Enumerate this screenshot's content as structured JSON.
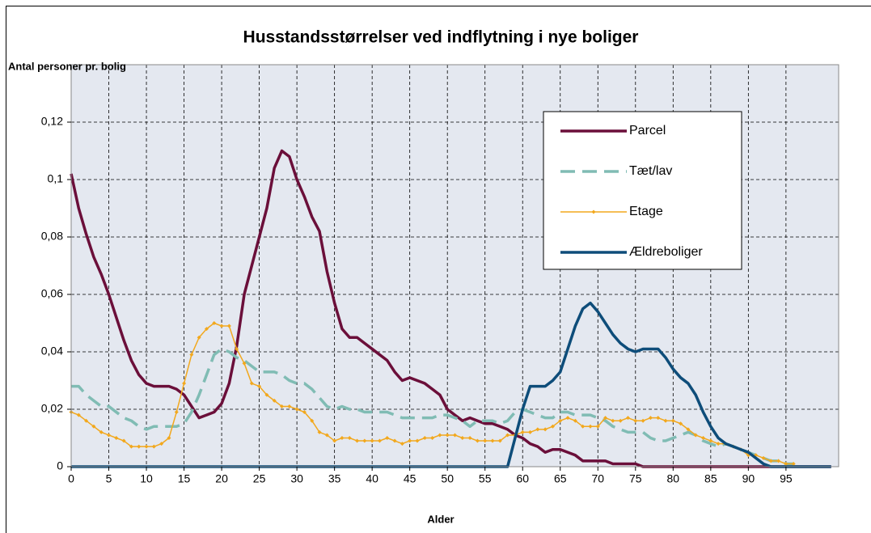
{
  "chart_data": {
    "type": "line",
    "title": "Husstandsstørrelser ved indflytning i nye boliger",
    "y_label": "Antal personer pr. bolig",
    "x_label": "Alder",
    "x": [
      0,
      1,
      2,
      3,
      4,
      5,
      6,
      7,
      8,
      9,
      10,
      11,
      12,
      13,
      14,
      15,
      16,
      17,
      18,
      19,
      20,
      21,
      22,
      23,
      24,
      25,
      26,
      27,
      28,
      29,
      30,
      31,
      32,
      33,
      34,
      35,
      36,
      37,
      38,
      39,
      40,
      41,
      42,
      43,
      44,
      45,
      46,
      47,
      48,
      49,
      50,
      51,
      52,
      53,
      54,
      55,
      56,
      57,
      58,
      59,
      60,
      61,
      62,
      63,
      64,
      65,
      66,
      67,
      68,
      69,
      70,
      71,
      72,
      73,
      74,
      75,
      76,
      77,
      78,
      79,
      80,
      81,
      82,
      83,
      84,
      85,
      86,
      87,
      88,
      89,
      90,
      91,
      92,
      93,
      94,
      95,
      96,
      97,
      98,
      99,
      100,
      101
    ],
    "xlim": [
      0,
      102
    ],
    "xticks": [
      0,
      5,
      10,
      15,
      20,
      25,
      30,
      35,
      40,
      45,
      50,
      55,
      60,
      65,
      70,
      75,
      80,
      85,
      90,
      95
    ],
    "ylim": [
      0,
      0.14
    ],
    "yticks": [
      0,
      {
        "value": 0.02,
        "label": "0,02"
      },
      {
        "value": 0.04,
        "label": "0,04"
      },
      {
        "value": 0.06,
        "label": "0,06"
      },
      {
        "value": 0.08,
        "label": "0,08"
      },
      {
        "value": 0.1,
        "label": "0,1"
      },
      {
        "value": 0.12,
        "label": "0,12"
      }
    ],
    "grid": true,
    "legend": "upper right",
    "series": [
      {
        "name": "Parcel",
        "color": "#6b0f3a",
        "values": [
          0.102,
          0.09,
          0.081,
          0.073,
          0.067,
          0.06,
          0.052,
          0.044,
          0.037,
          0.032,
          0.029,
          0.028,
          0.028,
          0.028,
          0.027,
          0.025,
          0.021,
          0.017,
          0.018,
          0.019,
          0.022,
          0.029,
          0.042,
          0.06,
          0.07,
          0.08,
          0.09,
          0.104,
          0.11,
          0.108,
          0.1,
          0.094,
          0.087,
          0.082,
          0.068,
          0.057,
          0.048,
          0.045,
          0.045,
          0.043,
          0.041,
          0.039,
          0.037,
          0.033,
          0.03,
          0.031,
          0.03,
          0.029,
          0.027,
          0.025,
          0.02,
          0.018,
          0.016,
          0.017,
          0.016,
          0.015,
          0.015,
          0.014,
          0.013,
          0.011,
          0.01,
          0.008,
          0.007,
          0.005,
          0.006,
          0.006,
          0.005,
          0.004,
          0.002,
          0.002,
          0.002,
          0.002,
          0.001,
          0.001,
          0.001,
          0.001,
          0,
          0,
          0,
          0,
          0,
          0,
          0,
          0,
          0,
          0,
          0,
          0,
          0,
          0,
          0,
          0,
          0,
          0,
          0,
          0,
          0,
          0,
          0,
          0,
          0,
          0
        ]
      },
      {
        "name": "Tæt/lav",
        "color": "#80bcb4",
        "style": "dashed",
        "values": [
          0.028,
          0.028,
          0.025,
          0.023,
          0.021,
          0.021,
          0.019,
          0.017,
          0.016,
          0.014,
          0.013,
          0.014,
          0.014,
          0.014,
          0.014,
          0.015,
          0.019,
          0.025,
          0.032,
          0.039,
          0.041,
          0.04,
          0.038,
          0.037,
          0.035,
          0.033,
          0.033,
          0.033,
          0.032,
          0.03,
          0.029,
          0.029,
          0.027,
          0.024,
          0.021,
          0.02,
          0.021,
          0.02,
          0.02,
          0.019,
          0.019,
          0.019,
          0.019,
          0.018,
          0.017,
          0.017,
          0.017,
          0.017,
          0.017,
          0.018,
          0.018,
          0.017,
          0.016,
          0.014,
          0.016,
          0.016,
          0.016,
          0.015,
          0.016,
          0.019,
          0.02,
          0.019,
          0.018,
          0.017,
          0.017,
          0.019,
          0.019,
          0.018,
          0.018,
          0.018,
          0.017,
          0.016,
          0.014,
          0.013,
          0.012,
          0.012,
          0.012,
          0.01,
          0.009,
          0.009,
          0.01,
          0.011,
          0.012,
          0.011,
          0.009,
          0.008,
          0.007,
          0.008,
          0.007,
          0.006,
          0.005,
          0.004,
          0.003,
          0.002,
          0.002,
          0.001,
          0.001,
          null,
          null,
          null,
          null,
          null
        ]
      },
      {
        "name": "Etage",
        "color": "#f2a81d",
        "marker": "diamond",
        "values": [
          0.019,
          0.018,
          0.016,
          0.014,
          0.012,
          0.011,
          0.01,
          0.009,
          0.007,
          0.007,
          0.007,
          0.007,
          0.008,
          0.01,
          0.019,
          0.029,
          0.039,
          0.045,
          0.048,
          0.05,
          0.049,
          0.049,
          0.041,
          0.036,
          0.029,
          0.028,
          0.025,
          0.023,
          0.021,
          0.021,
          0.02,
          0.019,
          0.016,
          0.012,
          0.011,
          0.009,
          0.01,
          0.01,
          0.009,
          0.009,
          0.009,
          0.009,
          0.01,
          0.009,
          0.008,
          0.009,
          0.009,
          0.01,
          0.01,
          0.011,
          0.011,
          0.011,
          0.01,
          0.01,
          0.009,
          0.009,
          0.009,
          0.009,
          0.011,
          0.011,
          0.012,
          0.012,
          0.013,
          0.013,
          0.014,
          0.016,
          0.017,
          0.016,
          0.014,
          0.014,
          0.014,
          0.017,
          0.016,
          0.016,
          0.017,
          0.016,
          0.016,
          0.017,
          0.017,
          0.016,
          0.016,
          0.015,
          0.013,
          0.011,
          0.01,
          0.009,
          0.008,
          0.008,
          0.007,
          0.006,
          0.004,
          0.004,
          0.003,
          0.002,
          0.002,
          0.001,
          0.001,
          null,
          null,
          null,
          null,
          null
        ]
      },
      {
        "name": "Ældreboliger",
        "color": "#0e4d7a",
        "values": [
          0,
          0,
          0,
          0,
          0,
          0,
          0,
          0,
          0,
          0,
          0,
          0,
          0,
          0,
          0,
          0,
          0,
          0,
          0,
          0,
          0,
          0,
          0,
          0,
          0,
          0,
          0,
          0,
          0,
          0,
          0,
          0,
          0,
          0,
          0,
          0,
          0,
          0,
          0,
          0,
          0,
          0,
          0,
          0,
          0,
          0,
          0,
          0,
          0,
          0,
          0,
          0,
          0,
          0,
          0,
          0,
          0,
          0,
          0,
          0.01,
          0.02,
          0.028,
          0.028,
          0.028,
          0.03,
          0.033,
          0.041,
          0.049,
          0.055,
          0.057,
          0.054,
          0.05,
          0.046,
          0.043,
          0.041,
          0.04,
          0.041,
          0.041,
          0.041,
          0.038,
          0.034,
          0.031,
          0.029,
          0.025,
          0.019,
          0.014,
          0.01,
          0.008,
          0.007,
          0.006,
          0.005,
          0.003,
          0.001,
          0,
          0,
          0,
          0,
          0,
          0,
          0,
          0,
          0
        ]
      }
    ]
  }
}
